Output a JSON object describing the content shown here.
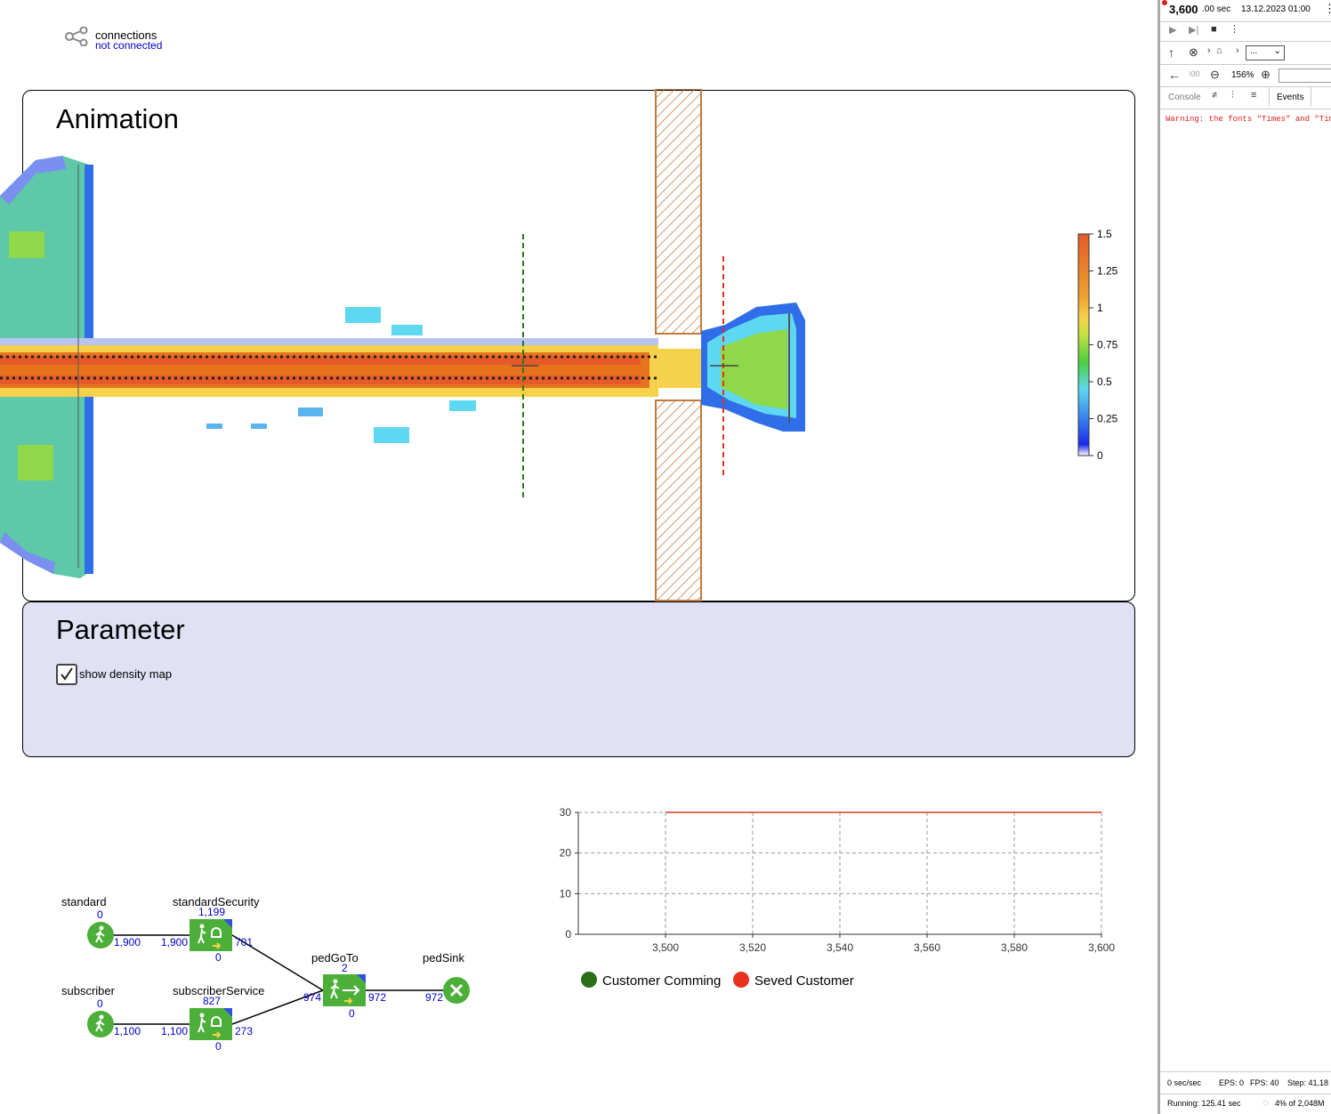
{
  "connections": {
    "title": "connections",
    "status": "not connected"
  },
  "animation": {
    "title": "Animation"
  },
  "parameter": {
    "title": "Parameter",
    "checkbox_label": "show density map",
    "checked": true
  },
  "colorbar": {
    "labels": [
      "1.5",
      "1.25",
      "1",
      "0.75",
      "0.5",
      "0.25",
      "0"
    ]
  },
  "dev": {
    "time_main": "3,600",
    "time_frac": ".00 sec",
    "date": "13.12.2023 01:00",
    "zoom": "156%",
    "nav_select": "...",
    "tabs": [
      "Console",
      "Events"
    ],
    "warning": "Warning: the fonts \"Times\" and \"Times",
    "status1": {
      "speed": "0 sec/sec",
      "eps": "EPS: 0",
      "fps": "FPS: 40",
      "step": "Step: 41,18"
    },
    "status2": {
      "running": "Running: 125.41 sec",
      "memory": "4% of 2,048M"
    }
  },
  "flow": {
    "standard": {
      "label": "standard",
      "top": "0",
      "out": "1,900"
    },
    "subscriber": {
      "label": "subscriber",
      "top": "0",
      "out": "1,100"
    },
    "standardSecurity": {
      "label": "standardSecurity",
      "top": "1,199",
      "in": "1,900",
      "out": "701",
      "bottom": "0"
    },
    "subscriberService": {
      "label": "subscriberService",
      "top": "827",
      "in": "1,100",
      "out": "273",
      "bottom": "0"
    },
    "pedGoTo": {
      "label": "pedGoTo",
      "top": "2",
      "in": "974",
      "out": "972",
      "bottom": "0"
    },
    "pedSink": {
      "label": "pedSink",
      "in": "972"
    }
  },
  "chart_data": {
    "type": "line",
    "x_ticks": [
      "3,500",
      "3,520",
      "3,540",
      "3,560",
      "3,580",
      "3,600"
    ],
    "y_ticks": [
      "30",
      "20",
      "10",
      "0"
    ],
    "xlim": [
      3480,
      3600
    ],
    "ylim": [
      0,
      30
    ],
    "grid": true,
    "series": [
      {
        "name": "Customer Comming",
        "color": "#2a6e1a",
        "x": [
          3500,
          3600
        ],
        "y": [
          30,
          30
        ]
      },
      {
        "name": "Seved Customer",
        "color": "#e8321e",
        "x": [
          3500,
          3600
        ],
        "y": [
          30,
          30
        ]
      }
    ],
    "legend_position": "bottom"
  }
}
